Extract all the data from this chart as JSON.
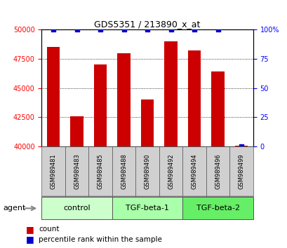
{
  "title": "GDS5351 / 213890_x_at",
  "samples": [
    "GSM989481",
    "GSM989483",
    "GSM989485",
    "GSM989488",
    "GSM989490",
    "GSM989492",
    "GSM989494",
    "GSM989496",
    "GSM989499"
  ],
  "counts": [
    48500,
    42600,
    47000,
    48000,
    44000,
    49000,
    48200,
    46400,
    40050
  ],
  "percentiles": [
    100,
    100,
    100,
    100,
    100,
    100,
    100,
    100,
    0
  ],
  "ylim_left": [
    40000,
    50000
  ],
  "ylim_right": [
    0,
    100
  ],
  "yticks_left": [
    40000,
    42500,
    45000,
    47500,
    50000
  ],
  "yticks_right": [
    0,
    25,
    50,
    75,
    100
  ],
  "groups": [
    {
      "label": "control",
      "indices": [
        0,
        1,
        2
      ],
      "color": "#ccffcc"
    },
    {
      "label": "TGF-beta-1",
      "indices": [
        3,
        4,
        5
      ],
      "color": "#aaffaa"
    },
    {
      "label": "TGF-beta-2",
      "indices": [
        6,
        7,
        8
      ],
      "color": "#66ee66"
    }
  ],
  "bar_color": "#cc0000",
  "percentile_color": "#0000cc",
  "bar_width": 0.55,
  "plot_bg": "#ffffff",
  "sample_box_color": "#d0d0d0",
  "agent_label": "agent",
  "legend_count_label": "count",
  "legend_percentile_label": "percentile rank within the sample",
  "title_fontsize": 9,
  "tick_fontsize": 7,
  "sample_fontsize": 6,
  "group_fontsize": 8
}
